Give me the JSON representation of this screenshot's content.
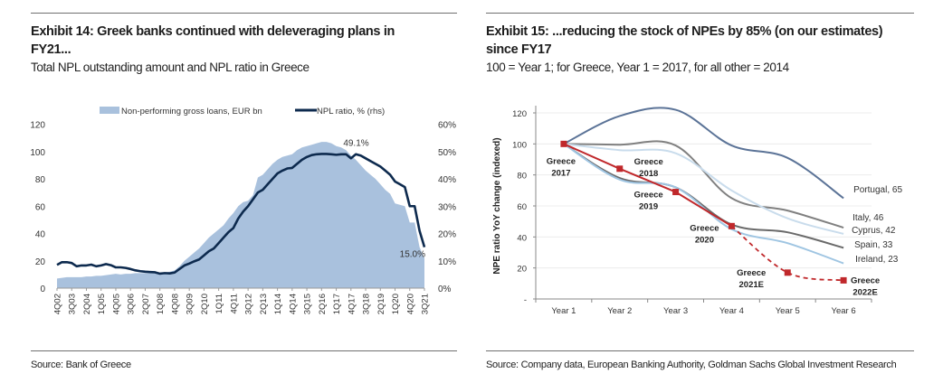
{
  "left": {
    "title": "Exhibit 14: Greek banks continued with deleveraging plans in FY21...",
    "subtitle": "Total NPL outstanding amount and NPL ratio in Greece",
    "source": "Source: Bank of Greece"
  },
  "right": {
    "title": "Exhibit 15: ...reducing the stock of NPEs by 85% (on our estimates) since FY17",
    "subtitle": "100 = Year 1; for Greece, Year 1 = 2017, for all other = 2014",
    "source": "Source: Company data, European Banking Authority, Goldman Sachs Global Investment Research"
  },
  "chart_data": [
    {
      "type": "area",
      "secondary_type": "line",
      "x_tick_labels": [
        "4Q02",
        "3Q03",
        "2Q04",
        "1Q05",
        "4Q05",
        "3Q06",
        "2Q07",
        "1Q08",
        "4Q08",
        "3Q09",
        "2Q10",
        "1Q11",
        "4Q11",
        "3Q12",
        "2Q13",
        "1Q14",
        "4Q14",
        "3Q15",
        "2Q16",
        "1Q17",
        "4Q17",
        "3Q18",
        "2Q19",
        "1Q20",
        "4Q20",
        "3Q21"
      ],
      "x_start": "4Q02",
      "x_end": "3Q21",
      "frequency": "quarterly",
      "ylim": [
        0,
        120
      ],
      "yticks": [
        0,
        20,
        40,
        60,
        80,
        100,
        120
      ],
      "y2lim": [
        0,
        60
      ],
      "y2ticks": [
        "0%",
        "10%",
        "20%",
        "30%",
        "40%",
        "50%",
        "60%"
      ],
      "legend_position": "top",
      "grid": false,
      "series": [
        {
          "name": "Non-performing gross loans, EUR bn",
          "axis": "left",
          "color": "#a9c1dd",
          "values": [
            7,
            7.5,
            8,
            8,
            8,
            8,
            8.5,
            8.5,
            9,
            9,
            9.5,
            10,
            10.5,
            10,
            10.5,
            10.5,
            11,
            11,
            11,
            11,
            11,
            11,
            11.5,
            12,
            13,
            16,
            20,
            23,
            26,
            29,
            33,
            37,
            40,
            43,
            46,
            51,
            55,
            60,
            63,
            64,
            68,
            81,
            83,
            87,
            91,
            94,
            96,
            97,
            98,
            101,
            103,
            104,
            105,
            106,
            107,
            107,
            106,
            104,
            103,
            101,
            97,
            94,
            90,
            86,
            83,
            80,
            76,
            72,
            69,
            62,
            61,
            60,
            48,
            48,
            30,
            22
          ]
        },
        {
          "name": "NPL ratio, % (rhs)",
          "axis": "right",
          "color": "#0d2a4e",
          "values": [
            8.5,
            9.5,
            9.5,
            9.2,
            8,
            8.3,
            8.3,
            8.6,
            8,
            8.3,
            8.8,
            8.4,
            7.6,
            7.6,
            7.4,
            7,
            6.5,
            6.2,
            6,
            5.9,
            5.8,
            5.3,
            5.5,
            5.4,
            5.7,
            7,
            8.3,
            9,
            9.8,
            10.5,
            12,
            13.5,
            14.5,
            16.5,
            18.5,
            20.5,
            22,
            25.5,
            28,
            30,
            32.5,
            35,
            36,
            38,
            40,
            42,
            43,
            43.8,
            44,
            45.5,
            47,
            48,
            48.7,
            49,
            49.1,
            49.1,
            49,
            48.8,
            49,
            49,
            47.5,
            49,
            48.5,
            47.5,
            46.5,
            45.5,
            44.5,
            43,
            41.5,
            39,
            38,
            37,
            30,
            30,
            21,
            15
          ]
        }
      ],
      "annotations": [
        {
          "text": "49.1%",
          "x": "2Q16"
        },
        {
          "text": "15.0%",
          "x": "3Q21"
        }
      ]
    },
    {
      "type": "line",
      "categories": [
        "Year 1",
        "Year 2",
        "Year 3",
        "Year 4",
        "Year 5",
        "Year 6"
      ],
      "ylabel": "NPE ratio YoY change (indexed)",
      "ylim": [
        0,
        125
      ],
      "yticks": [
        "-",
        "20",
        "40",
        "60",
        "80",
        "100",
        "120"
      ],
      "grid": true,
      "series": [
        {
          "name": "Portugal",
          "label": "Portugal,  65",
          "color": "#5b7397",
          "values": [
            100,
            118,
            122,
            99,
            91,
            65
          ]
        },
        {
          "name": "Italy",
          "label": "Italy,  46",
          "color": "#808080",
          "values": [
            100,
            99.5,
            99,
            65,
            57,
            46
          ]
        },
        {
          "name": "Cyprus",
          "label": "Cyprus,  42",
          "color": "#c9dcec",
          "values": [
            100,
            96,
            94,
            70,
            52,
            42
          ]
        },
        {
          "name": "Spain",
          "label": "Spain,  33",
          "color": "#6a6a6a",
          "values": [
            100,
            78,
            72,
            48,
            43,
            33
          ]
        },
        {
          "name": "Ireland",
          "label": "Ireland,  23",
          "color": "#9fc5e2",
          "values": [
            100,
            77,
            72,
            45,
            36,
            23
          ]
        },
        {
          "name": "Greece",
          "color": "#c0282b",
          "values": [
            100,
            84,
            69,
            47,
            17,
            12
          ],
          "estimate_from": "Year 4",
          "point_labels": [
            [
              "Greece",
              "2017"
            ],
            [
              "Greece",
              "2018"
            ],
            [
              "Greece",
              "2019"
            ],
            [
              "Greece",
              "2020"
            ],
            [
              "Greece",
              "2021E"
            ],
            [
              "Greece",
              "2022E"
            ]
          ]
        }
      ]
    }
  ]
}
